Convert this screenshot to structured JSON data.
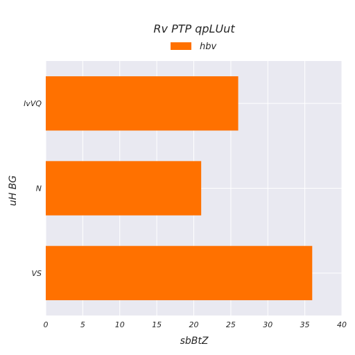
{
  "chart_data": {
    "type": "bar",
    "orientation": "horizontal",
    "title": "Rv PTP qpLUut",
    "xlabel": "sbBtZ",
    "ylabel": "uH BG",
    "categories": [
      "IvVQ",
      "N",
      "VS"
    ],
    "series": [
      {
        "name": "hbv",
        "values": [
          26,
          21,
          36
        ],
        "color": "#ff7100"
      }
    ],
    "xlim": [
      0,
      40
    ],
    "xticks": [
      0,
      5,
      10,
      15,
      20,
      25,
      30,
      35,
      40
    ],
    "grid": true,
    "legend_position": "top-center",
    "background_color": "#e9e9f1"
  }
}
